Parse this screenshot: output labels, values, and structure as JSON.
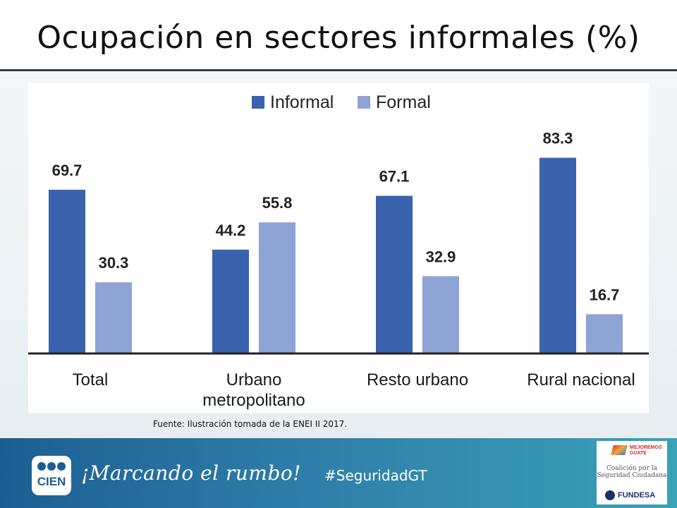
{
  "slide": {
    "title": "Ocupación en sectores informales (%)",
    "source": "Fuente: Ilustración tomada de la ENEI II 2017."
  },
  "chart_data": {
    "type": "bar",
    "categories": [
      "Total",
      "Urbano metropolitano",
      "Resto urbano",
      "Rural nacional"
    ],
    "category_lines": [
      [
        "Total"
      ],
      [
        "Urbano",
        "metropolitano"
      ],
      [
        "Resto urbano"
      ],
      [
        "Rural nacional"
      ]
    ],
    "series": [
      {
        "name": "Informal",
        "values": [
          69.7,
          44.2,
          67.1,
          83.3
        ],
        "color": "#3a62ad"
      },
      {
        "name": "Formal",
        "values": [
          30.3,
          55.8,
          32.9,
          16.7
        ],
        "color": "#8ea4d5"
      }
    ],
    "value_labels": [
      [
        "69.7",
        "44.2",
        "67.1",
        "83.3"
      ],
      [
        "30.3",
        "55.8",
        "32.9",
        "16.7"
      ]
    ],
    "ylim": [
      0,
      100
    ],
    "grid": false,
    "legend_position": "top-center"
  },
  "footer": {
    "logo_text": "CIEN",
    "tagline": "¡Marcando el rumbo!",
    "hashtag": "#SeguridadGT",
    "partner_brand": "MEJOREMOS GUATE",
    "coalition_lines": [
      "Coalición por la",
      "Seguridad Ciudadana"
    ],
    "partner_org": "FUNDESA"
  },
  "colors": {
    "footer_gradient_start": "#1c5e92",
    "footer_gradient_end": "#3aa1b7"
  }
}
